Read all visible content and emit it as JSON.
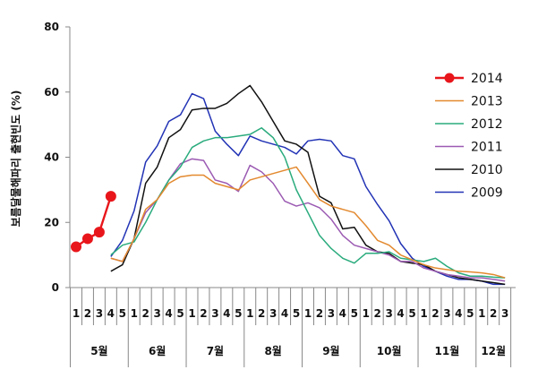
{
  "chart_data": {
    "type": "line",
    "ylabel": "보름달물해파리 출현빈도 (%)",
    "ylim": [
      0,
      80
    ],
    "yticks": [
      0,
      20,
      40,
      60,
      80
    ],
    "grid": false,
    "legend_position": "right",
    "categories": [
      "1",
      "2",
      "3",
      "4",
      "5",
      "1",
      "2",
      "3",
      "4",
      "5",
      "1",
      "2",
      "3",
      "4",
      "5",
      "1",
      "2",
      "3",
      "4",
      "5",
      "1",
      "2",
      "3",
      "4",
      "5",
      "1",
      "2",
      "3",
      "4",
      "5",
      "1",
      "2",
      "3",
      "4",
      "5",
      "1",
      "2",
      "3"
    ],
    "months": [
      {
        "label": "5월",
        "start": 0,
        "count": 5
      },
      {
        "label": "6월",
        "start": 5,
        "count": 5
      },
      {
        "label": "7월",
        "start": 10,
        "count": 5
      },
      {
        "label": "8월",
        "start": 15,
        "count": 5
      },
      {
        "label": "9월",
        "start": 20,
        "count": 5
      },
      {
        "label": "10월",
        "start": 25,
        "count": 5
      },
      {
        "label": "11월",
        "start": 30,
        "count": 5
      },
      {
        "label": "12월",
        "start": 35,
        "count": 3
      }
    ],
    "series": [
      {
        "name": "2014",
        "color": "#e8161b",
        "marker": true,
        "values": [
          12.5,
          15,
          17,
          28,
          null,
          null,
          null,
          null,
          null,
          null,
          null,
          null,
          null,
          null,
          null,
          null,
          null,
          null,
          null,
          null,
          null,
          null,
          null,
          null,
          null,
          null,
          null,
          null,
          null,
          null,
          null,
          null,
          null,
          null,
          null,
          null,
          null,
          null
        ]
      },
      {
        "name": "2013",
        "color": "#e3892f",
        "marker": false,
        "values": [
          null,
          null,
          null,
          9,
          8,
          15,
          24,
          27,
          32,
          34,
          34.5,
          34.5,
          32,
          31,
          30,
          33,
          34,
          35,
          36,
          37,
          32,
          27,
          25,
          24,
          23,
          19,
          14.5,
          13,
          10,
          8.5,
          7,
          6,
          5.5,
          5,
          4.8,
          4.5,
          4,
          3
        ]
      },
      {
        "name": "2012",
        "color": "#2aab7d",
        "marker": false,
        "values": [
          null,
          null,
          null,
          10,
          13,
          14,
          20,
          27,
          33,
          37,
          43,
          45,
          46,
          46,
          46.5,
          47,
          49,
          46,
          40,
          30,
          23,
          16,
          12,
          9,
          7.5,
          10.5,
          10.5,
          11,
          9,
          8.5,
          8,
          9,
          6.5,
          4.5,
          3.5,
          3.5,
          3.2,
          3
        ]
      },
      {
        "name": "2011",
        "color": "#9b5ab2",
        "marker": false,
        "values": [
          null,
          null,
          null,
          9,
          8,
          15,
          23,
          27,
          33,
          38,
          39.5,
          39,
          33,
          32,
          29.5,
          37.5,
          35.5,
          32,
          26.5,
          25,
          26,
          24.5,
          21,
          16,
          13,
          12,
          11,
          10,
          8,
          8,
          6,
          5,
          4,
          3.5,
          3,
          3,
          2.5,
          2
        ]
      },
      {
        "name": "2010",
        "color": "#111111",
        "marker": false,
        "values": [
          null,
          null,
          null,
          5,
          7,
          15,
          32,
          37,
          46,
          48.5,
          54.5,
          55,
          55,
          56.5,
          59.5,
          62,
          57,
          51,
          45,
          44,
          41.5,
          28,
          26,
          18,
          18.5,
          13,
          11,
          10.5,
          8,
          7.5,
          7,
          5,
          4,
          3,
          2.5,
          2,
          1.5,
          1
        ]
      },
      {
        "name": "2009",
        "color": "#2233b5",
        "marker": false,
        "values": [
          null,
          null,
          null,
          9.5,
          14.5,
          23.5,
          38.5,
          43.5,
          51,
          53,
          59.5,
          58,
          48,
          44,
          40.5,
          46.5,
          45,
          44,
          43,
          41,
          45,
          45.5,
          45,
          40.5,
          39.5,
          31,
          25.5,
          20.5,
          13.5,
          9,
          6.5,
          5,
          3.5,
          2.5,
          2.5,
          2,
          1,
          1
        ]
      }
    ]
  }
}
